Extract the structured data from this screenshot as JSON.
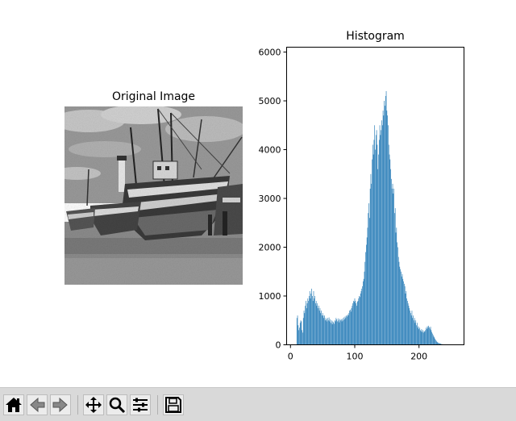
{
  "figure": {
    "image_panel": {
      "title": "Original Image"
    },
    "histogram_panel": {
      "title": "Histogram"
    }
  },
  "toolbar": {
    "buttons": [
      {
        "name": "home-button",
        "icon": "home-icon"
      },
      {
        "name": "back-button",
        "icon": "back-arrow-icon"
      },
      {
        "name": "forward-button",
        "icon": "forward-arrow-icon"
      },
      {
        "name": "pan-button",
        "icon": "pan-icon"
      },
      {
        "name": "zoom-button",
        "icon": "zoom-icon"
      },
      {
        "name": "subplots-button",
        "icon": "subplots-icon"
      },
      {
        "name": "save-button",
        "icon": "save-icon"
      }
    ]
  },
  "chart_data": {
    "type": "bar",
    "title": "Histogram",
    "xlabel": "",
    "ylabel": "",
    "xlim": [
      -6,
      270
    ],
    "ylim": [
      0,
      6100
    ],
    "xticks": [
      0,
      100,
      200
    ],
    "yticks": [
      0,
      1000,
      2000,
      3000,
      4000,
      5000,
      6000
    ],
    "color": "#1f77b4",
    "bars": [
      [
        10,
        550
      ],
      [
        11,
        600
      ],
      [
        12,
        400
      ],
      [
        13,
        300
      ],
      [
        14,
        350
      ],
      [
        15,
        450
      ],
      [
        16,
        500
      ],
      [
        17,
        480
      ],
      [
        18,
        300
      ],
      [
        19,
        250
      ],
      [
        20,
        550
      ],
      [
        21,
        700
      ],
      [
        22,
        650
      ],
      [
        23,
        800
      ],
      [
        24,
        900
      ],
      [
        25,
        750
      ],
      [
        26,
        850
      ],
      [
        27,
        950
      ],
      [
        28,
        900
      ],
      [
        29,
        1000
      ],
      [
        30,
        1100
      ],
      [
        31,
        950
      ],
      [
        32,
        1050
      ],
      [
        33,
        1150
      ],
      [
        34,
        1000
      ],
      [
        35,
        900
      ],
      [
        36,
        1100
      ],
      [
        37,
        950
      ],
      [
        38,
        1000
      ],
      [
        39,
        850
      ],
      [
        40,
        900
      ],
      [
        41,
        800
      ],
      [
        42,
        850
      ],
      [
        43,
        750
      ],
      [
        44,
        800
      ],
      [
        45,
        700
      ],
      [
        46,
        750
      ],
      [
        47,
        650
      ],
      [
        48,
        700
      ],
      [
        49,
        600
      ],
      [
        50,
        650
      ],
      [
        51,
        600
      ],
      [
        52,
        550
      ],
      [
        53,
        600
      ],
      [
        54,
        500
      ],
      [
        55,
        550
      ],
      [
        56,
        520
      ],
      [
        57,
        480
      ],
      [
        58,
        550
      ],
      [
        59,
        500
      ],
      [
        60,
        560
      ],
      [
        61,
        480
      ],
      [
        62,
        520
      ],
      [
        63,
        450
      ],
      [
        64,
        500
      ],
      [
        65,
        420
      ],
      [
        66,
        480
      ],
      [
        67,
        460
      ],
      [
        68,
        430
      ],
      [
        69,
        500
      ],
      [
        70,
        480
      ],
      [
        71,
        550
      ],
      [
        72,
        520
      ],
      [
        73,
        480
      ],
      [
        74,
        540
      ],
      [
        75,
        500
      ],
      [
        76,
        460
      ],
      [
        77,
        530
      ],
      [
        78,
        500
      ],
      [
        79,
        520
      ],
      [
        80,
        480
      ],
      [
        81,
        540
      ],
      [
        82,
        500
      ],
      [
        83,
        560
      ],
      [
        84,
        520
      ],
      [
        85,
        580
      ],
      [
        86,
        550
      ],
      [
        87,
        600
      ],
      [
        88,
        580
      ],
      [
        89,
        620
      ],
      [
        90,
        600
      ],
      [
        91,
        650
      ],
      [
        92,
        700
      ],
      [
        93,
        720
      ],
      [
        94,
        680
      ],
      [
        95,
        750
      ],
      [
        96,
        800
      ],
      [
        97,
        850
      ],
      [
        98,
        900
      ],
      [
        99,
        880
      ],
      [
        100,
        950
      ],
      [
        101,
        900
      ],
      [
        102,
        850
      ],
      [
        103,
        800
      ],
      [
        104,
        880
      ],
      [
        105,
        900
      ],
      [
        106,
        950
      ],
      [
        107,
        1000
      ],
      [
        108,
        980
      ],
      [
        109,
        1050
      ],
      [
        110,
        1100
      ],
      [
        111,
        1150
      ],
      [
        112,
        1200
      ],
      [
        113,
        1300
      ],
      [
        114,
        1350
      ],
      [
        115,
        1500
      ],
      [
        116,
        1700
      ],
      [
        117,
        1900
      ],
      [
        118,
        2050
      ],
      [
        119,
        2200
      ],
      [
        120,
        2400
      ],
      [
        121,
        2700
      ],
      [
        122,
        2900
      ],
      [
        123,
        2600
      ],
      [
        124,
        3200
      ],
      [
        125,
        3500
      ],
      [
        126,
        3300
      ],
      [
        127,
        3800
      ],
      [
        128,
        4100
      ],
      [
        129,
        3900
      ],
      [
        130,
        4200
      ],
      [
        131,
        4500
      ],
      [
        132,
        4000
      ],
      [
        133,
        4300
      ],
      [
        134,
        4400
      ],
      [
        135,
        4100
      ],
      [
        136,
        3600
      ],
      [
        137,
        3900
      ],
      [
        138,
        4200
      ],
      [
        139,
        4500
      ],
      [
        140,
        4300
      ],
      [
        141,
        4400
      ],
      [
        142,
        4600
      ],
      [
        143,
        4500
      ],
      [
        144,
        4800
      ],
      [
        145,
        4700
      ],
      [
        146,
        5000
      ],
      [
        147,
        4900
      ],
      [
        148,
        5100
      ],
      [
        149,
        5200
      ],
      [
        150,
        4800
      ],
      [
        151,
        4700
      ],
      [
        152,
        4500
      ],
      [
        153,
        4100
      ],
      [
        154,
        3900
      ],
      [
        155,
        3800
      ],
      [
        156,
        3600
      ],
      [
        157,
        3400
      ],
      [
        158,
        3200
      ],
      [
        159,
        3300
      ],
      [
        160,
        3100
      ],
      [
        161,
        3200
      ],
      [
        162,
        2700
      ],
      [
        163,
        2800
      ],
      [
        164,
        2300
      ],
      [
        165,
        2400
      ],
      [
        166,
        2100
      ],
      [
        167,
        2000
      ],
      [
        168,
        1800
      ],
      [
        169,
        1700
      ],
      [
        170,
        1600
      ],
      [
        171,
        1550
      ],
      [
        172,
        1500
      ],
      [
        173,
        1400
      ],
      [
        174,
        1450
      ],
      [
        175,
        1350
      ],
      [
        176,
        1300
      ],
      [
        177,
        1250
      ],
      [
        178,
        1200
      ],
      [
        179,
        1050
      ],
      [
        180,
        1100
      ],
      [
        181,
        950
      ],
      [
        182,
        900
      ],
      [
        183,
        850
      ],
      [
        184,
        800
      ],
      [
        185,
        750
      ],
      [
        186,
        700
      ],
      [
        187,
        650
      ],
      [
        188,
        600
      ],
      [
        189,
        700
      ],
      [
        190,
        550
      ],
      [
        191,
        600
      ],
      [
        192,
        500
      ],
      [
        193,
        550
      ],
      [
        194,
        450
      ],
      [
        195,
        500
      ],
      [
        196,
        400
      ],
      [
        197,
        450
      ],
      [
        198,
        350
      ],
      [
        199,
        380
      ],
      [
        200,
        320
      ],
      [
        201,
        350
      ],
      [
        202,
        300
      ],
      [
        203,
        280
      ],
      [
        204,
        320
      ],
      [
        205,
        260
      ],
      [
        206,
        300
      ],
      [
        207,
        250
      ],
      [
        208,
        280
      ],
      [
        209,
        270
      ],
      [
        210,
        300
      ],
      [
        211,
        350
      ],
      [
        212,
        320
      ],
      [
        213,
        380
      ],
      [
        214,
        350
      ],
      [
        215,
        390
      ],
      [
        216,
        360
      ],
      [
        217,
        330
      ],
      [
        218,
        370
      ],
      [
        219,
        300
      ],
      [
        220,
        260
      ],
      [
        221,
        230
      ],
      [
        222,
        200
      ],
      [
        223,
        170
      ],
      [
        224,
        150
      ],
      [
        225,
        120
      ],
      [
        226,
        100
      ],
      [
        227,
        80
      ],
      [
        228,
        60
      ],
      [
        229,
        50
      ],
      [
        230,
        40
      ],
      [
        231,
        35
      ],
      [
        232,
        30
      ],
      [
        233,
        25
      ],
      [
        234,
        20
      ],
      [
        235,
        15
      ],
      [
        236,
        12
      ],
      [
        237,
        10
      ],
      [
        238,
        8
      ],
      [
        239,
        6
      ],
      [
        240,
        5
      ],
      [
        241,
        4
      ],
      [
        242,
        3
      ],
      [
        243,
        2
      ],
      [
        244,
        2
      ],
      [
        245,
        1
      ]
    ]
  }
}
